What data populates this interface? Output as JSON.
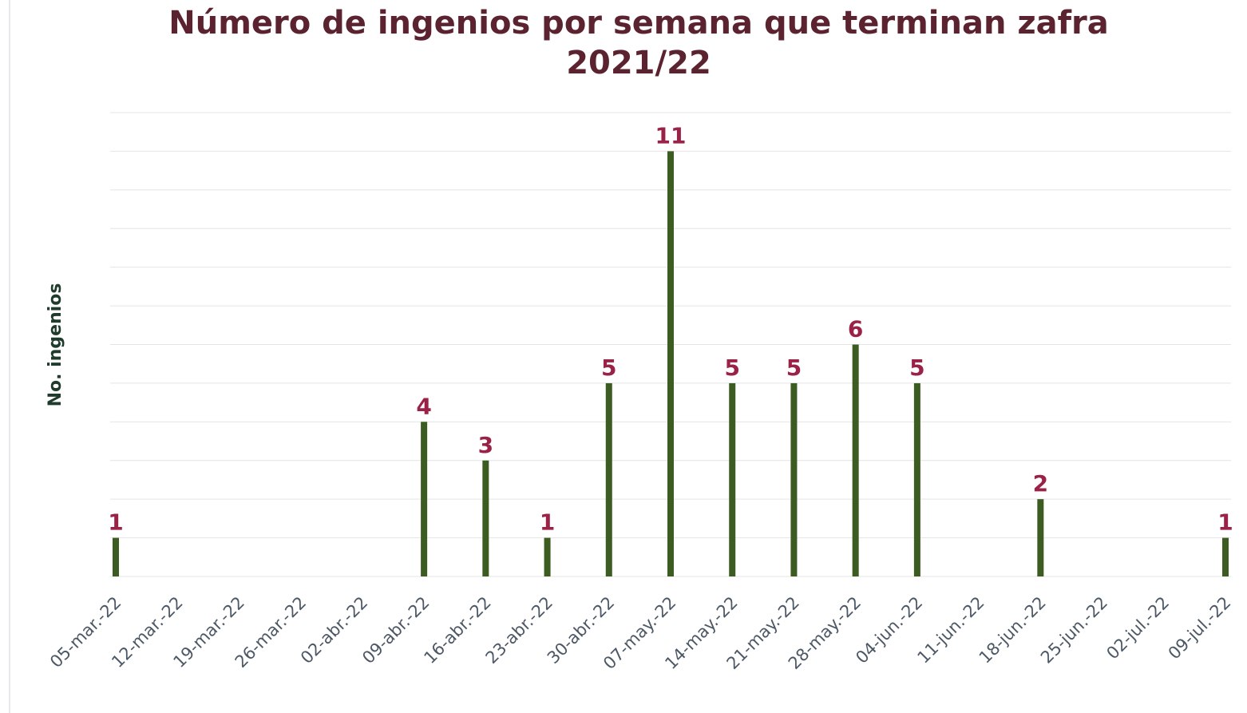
{
  "chart_data": {
    "type": "bar",
    "title": "Número de ingenios por semana que terminan zafra 2021/22",
    "y_label": "No. ingenios",
    "categories": [
      "05-mar.-22",
      "12-mar.-22",
      "19-mar.-22",
      "26-mar.-22",
      "02-abr.-22",
      "09-abr.-22",
      "16-abr.-22",
      "23-abr.-22",
      "30-abr.-22",
      "07-may.-22",
      "14-may.-22",
      "21-may.-22",
      "28-may.-22",
      "04-jun.-22",
      "11-jun.-22",
      "18-jun.-22",
      "25-jun.-22",
      "02-jul.-22",
      "09-jul.-22"
    ],
    "values": [
      1,
      null,
      null,
      null,
      null,
      4,
      3,
      1,
      5,
      11,
      5,
      5,
      6,
      5,
      null,
      2,
      null,
      null,
      1
    ],
    "color": "#3d5c22",
    "ylim": [
      0,
      12
    ],
    "yticks": [
      0,
      1,
      2,
      3,
      4,
      5,
      6,
      7,
      8,
      9,
      10,
      11,
      12
    ],
    "grid": true
  }
}
